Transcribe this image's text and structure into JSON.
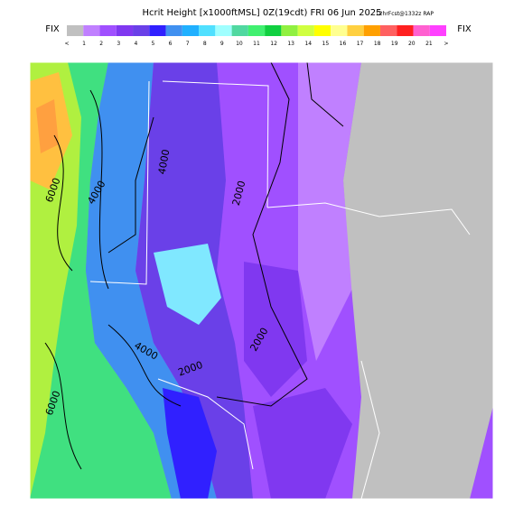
{
  "header": {
    "title": "Hcrit Height [x1000ftMSL]  0Z(19cdt) FRI 06 Jun 2025",
    "forecast": "12hrFcst@1332z RAP"
  },
  "colorbar": {
    "left_label": "FIX",
    "right_label": "FIX",
    "colors": [
      "#c0c0c0",
      "#c080ff",
      "#a050ff",
      "#8038f0",
      "#6a40e8",
      "#3020ff",
      "#4090f0",
      "#20b0ff",
      "#50e0ff",
      "#a0ffff",
      "#50d8a0",
      "#40f070",
      "#10d040",
      "#90f040",
      "#d0ff40",
      "#ffff00",
      "#ffff90",
      "#ffd040",
      "#ffa000",
      "#ff6060",
      "#ff2020",
      "#ff60d0",
      "#ff40ff"
    ],
    "labels": [
      "<",
      "1",
      "2",
      "3",
      "4",
      "5",
      "6",
      "7",
      "8",
      "9",
      "10",
      "11",
      "12",
      "13",
      "14",
      "15",
      "16",
      "17",
      "18",
      "19",
      "20",
      "21",
      ">"
    ]
  },
  "map": {
    "contour_labels": [
      "6000",
      "4000",
      "4000",
      "2000",
      "4000",
      "2000",
      "2000",
      "6000"
    ]
  }
}
